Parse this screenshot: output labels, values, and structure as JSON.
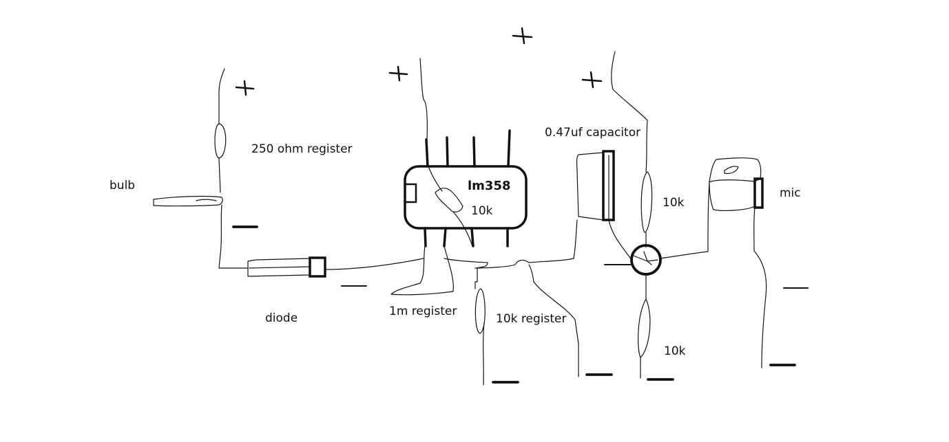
{
  "labels": {
    "bulb": "bulb",
    "resistor_250": "250 ohm register",
    "diode": "diode",
    "ic": "lm358",
    "ic_inner_resistor": "10k",
    "resistor_1m": "1m register",
    "resistor_10k": "10k register",
    "capacitor": "0.47uf capacitor",
    "resistor_10k_top": "10k",
    "resistor_10k_bottom": "10k",
    "mic": "mic"
  },
  "colors": {
    "ink": "#111111",
    "background": "#ffffff"
  }
}
